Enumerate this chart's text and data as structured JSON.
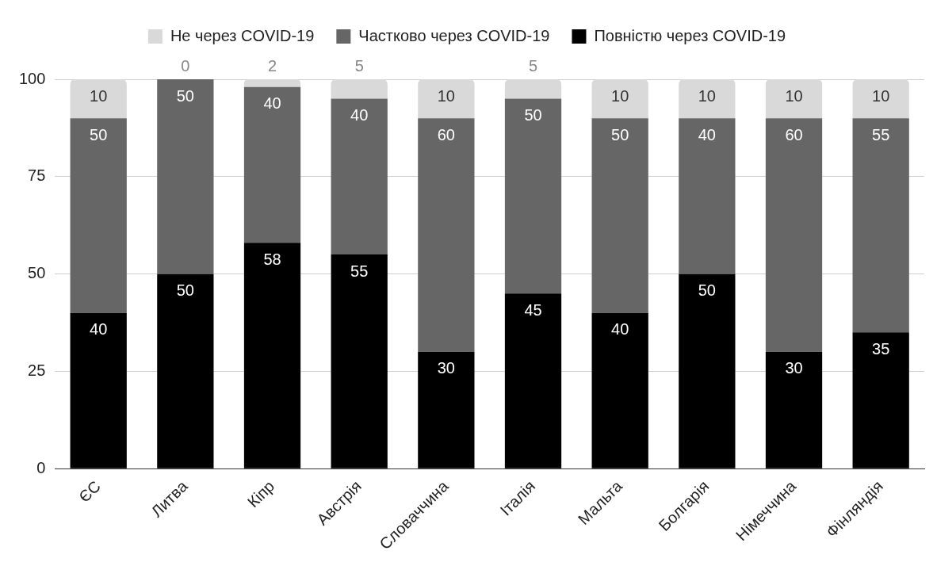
{
  "chart_data": {
    "type": "bar",
    "stacked": true,
    "data_labels": true,
    "grid": "y",
    "legend": "top",
    "categories": [
      "ЄС",
      "Литва",
      "Кіпр",
      "Австрія",
      "Словаччина",
      "Італія",
      "Мальта",
      "Болгарія",
      "Німеччина",
      "Фінляндія"
    ],
    "series": [
      {
        "name": "Повністю через COVID-19",
        "color": "#000000",
        "values": [
          40,
          50,
          58,
          55,
          30,
          45,
          40,
          50,
          30,
          35
        ]
      },
      {
        "name": "Частково через COVID-19",
        "color": "#666666",
        "values": [
          50,
          50,
          40,
          40,
          60,
          50,
          50,
          40,
          60,
          55
        ]
      },
      {
        "name": "Не через COVID-19",
        "color": "#d9d9d9",
        "values": [
          10,
          0,
          2,
          5,
          10,
          5,
          10,
          10,
          10,
          10
        ]
      }
    ],
    "ylim": [
      0,
      100
    ],
    "yticks": [
      0,
      25,
      50,
      75,
      100
    ]
  }
}
